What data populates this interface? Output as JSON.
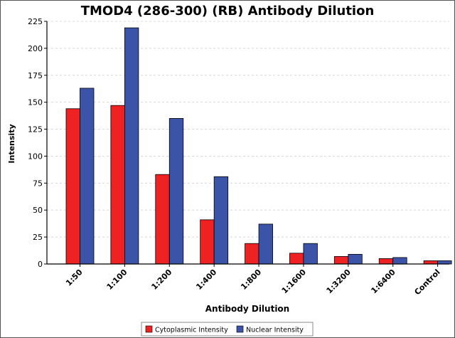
{
  "chart_data": {
    "type": "bar",
    "title": "TMOD4 (286-300) (RB) Antibody Dilution",
    "xlabel": "Antibody Dilution",
    "ylabel": "Intensity",
    "ylim": [
      0,
      225
    ],
    "yticks": [
      0,
      25,
      50,
      75,
      100,
      125,
      150,
      175,
      200,
      225
    ],
    "grid": true,
    "legend": "bottom",
    "categories": [
      "1:50",
      "1:100",
      "1:200",
      "1:400",
      "1:800",
      "1:1600",
      "1:3200",
      "1:6400",
      "Control"
    ],
    "series": [
      {
        "name": "Cytoplasmic Intensity",
        "color": "#ee2222",
        "values": [
          144,
          147,
          83,
          41,
          19,
          10,
          7,
          5,
          3
        ]
      },
      {
        "name": "Nuclear Intensity",
        "color": "#3c54a8",
        "values": [
          163,
          219,
          135,
          81,
          37,
          19,
          9,
          6,
          3
        ]
      }
    ]
  }
}
